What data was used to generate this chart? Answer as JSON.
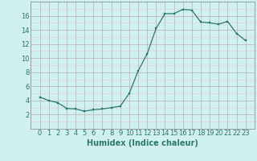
{
  "x": [
    0,
    1,
    2,
    3,
    4,
    5,
    6,
    7,
    8,
    9,
    10,
    11,
    12,
    13,
    14,
    15,
    16,
    17,
    18,
    19,
    20,
    21,
    22,
    23
  ],
  "y": [
    4.5,
    4.0,
    3.7,
    2.9,
    2.8,
    2.5,
    2.7,
    2.8,
    3.0,
    3.2,
    5.0,
    8.2,
    10.6,
    14.2,
    16.3,
    16.3,
    16.9,
    16.8,
    15.1,
    15.0,
    14.8,
    15.2,
    13.5,
    12.5
  ],
  "line_color": "#2d7a6e",
  "marker_color": "#2d7a6e",
  "bg_color": "#d0f0f0",
  "grid_minor_color": "#e8c8c8",
  "grid_major_color": "#c0b0b0",
  "xlabel": "Humidex (Indice chaleur)",
  "xlabel_fontsize": 7,
  "tick_fontsize": 6,
  "ylim": [
    0,
    18
  ],
  "xlim": [
    -0.5,
    23.5
  ],
  "yticks": [
    2,
    4,
    6,
    8,
    10,
    12,
    14,
    16
  ],
  "xticks": [
    0,
    1,
    2,
    3,
    4,
    5,
    6,
    7,
    8,
    9,
    10,
    11,
    12,
    13,
    14,
    15,
    16,
    17,
    18,
    19,
    20,
    21,
    22,
    23
  ]
}
